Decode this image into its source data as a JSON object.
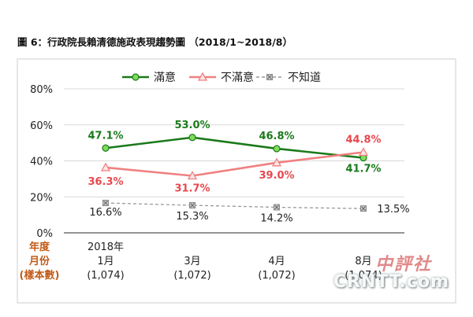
{
  "title": "圖 6：行政院長賴清德施政表現趨勢圖 （2018/1~2018/8）",
  "chart_data": {
    "type": "line",
    "ylim": [
      0,
      80
    ],
    "yticks": [
      "0%",
      "20%",
      "40%",
      "60%",
      "80%"
    ],
    "ytick_values": [
      0,
      20,
      40,
      60,
      80
    ],
    "grid": true,
    "legend_position": "top",
    "row_header": [
      "年度",
      "月份",
      "(樣本數)"
    ],
    "categories": [
      {
        "year": "2018年",
        "month": "1月",
        "sample": "(1,074)"
      },
      {
        "year": "",
        "month": "3月",
        "sample": "(1,072)"
      },
      {
        "year": "",
        "month": "4月",
        "sample": "(1,072)"
      },
      {
        "year": "",
        "month": "8月",
        "sample": "(1,074)"
      }
    ],
    "series": [
      {
        "name": "滿意",
        "color": "#1a7a1a",
        "marker": "circle",
        "style": "solid",
        "values": [
          47.1,
          53.0,
          46.8,
          41.7
        ],
        "labels": [
          "47.1%",
          "53.0%",
          "46.8%",
          "41.7%"
        ]
      },
      {
        "name": "不滿意",
        "color": "#f08080",
        "marker": "triangle",
        "style": "solid",
        "values": [
          36.3,
          31.7,
          39.0,
          44.8
        ],
        "labels": [
          "36.3%",
          "31.7%",
          "39.0%",
          "44.8%"
        ]
      },
      {
        "name": "不知道",
        "color": "#999999",
        "marker": "x-square",
        "style": "dashed",
        "values": [
          16.6,
          15.3,
          14.2,
          13.5
        ],
        "labels": [
          "16.6%",
          "15.3%",
          "14.2%",
          "13.5%"
        ]
      }
    ]
  },
  "watermark": {
    "brand": "中評社",
    "site": "CRNTT.com"
  }
}
